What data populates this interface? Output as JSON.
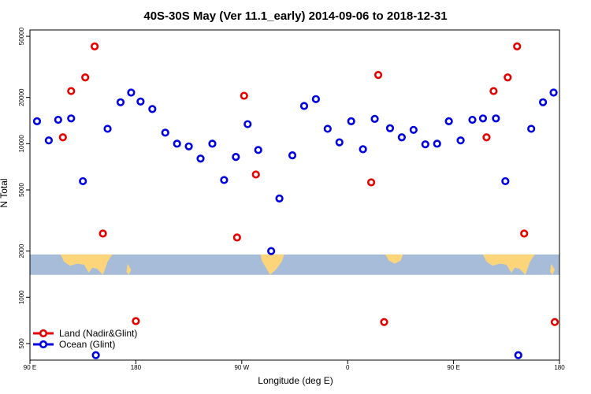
{
  "chart_data": {
    "type": "scatter",
    "title": "40S-30S May (Ver 11.1_early)   2014-09-06 to 2018-12-31",
    "xlabel": "Longitude (deg E)",
    "ylabel": "N Total",
    "y_scale": "log",
    "xlim": [
      90,
      540
    ],
    "ylim": [
      390,
      55000
    ],
    "x_ticks": [
      {
        "value": 90,
        "label": "90 E"
      },
      {
        "value": 180,
        "label": "180"
      },
      {
        "value": 270,
        "label": "90 W"
      },
      {
        "value": 360,
        "label": "0"
      },
      {
        "value": 450,
        "label": "90 E"
      },
      {
        "value": 540,
        "label": "180"
      }
    ],
    "y_ticks": [
      {
        "value": 500,
        "label": "500"
      },
      {
        "value": 1000,
        "label": "1000"
      },
      {
        "value": 2000,
        "label": "2000"
      },
      {
        "value": 5000,
        "label": "5000"
      },
      {
        "value": 10000,
        "label": "10000"
      },
      {
        "value": 20000,
        "label": "20000"
      },
      {
        "value": 50000,
        "label": "50000"
      }
    ],
    "map_strip": {
      "y_top": 1900,
      "y_bottom": 1400,
      "ocean_color": "#a7bcd9",
      "land_color": "#fcd57a"
    },
    "series": [
      {
        "name": "Land (Nadir&Glint)",
        "color": "#e60000",
        "points": [
          [
            118,
            11000
          ],
          [
            125,
            22000
          ],
          [
            137,
            27000
          ],
          [
            145,
            43000
          ],
          [
            152,
            2600
          ],
          [
            180,
            700
          ],
          [
            266,
            2450
          ],
          [
            272,
            20500
          ],
          [
            282,
            6300
          ],
          [
            380,
            5600
          ],
          [
            386,
            28000
          ],
          [
            391,
            690
          ],
          [
            478,
            11000
          ],
          [
            484,
            22000
          ],
          [
            496,
            27000
          ],
          [
            504,
            43000
          ],
          [
            510,
            2600
          ],
          [
            536,
            690
          ]
        ]
      },
      {
        "name": "Ocean (Glint)",
        "color": "#0000e0",
        "points": [
          [
            96,
            14000
          ],
          [
            106,
            10500
          ],
          [
            114,
            14300
          ],
          [
            125,
            14600
          ],
          [
            135,
            5700
          ],
          [
            146,
            420
          ],
          [
            156,
            12500
          ],
          [
            167,
            18600
          ],
          [
            176,
            21500
          ],
          [
            184,
            18800
          ],
          [
            194,
            16800
          ],
          [
            205,
            11800
          ],
          [
            215,
            10000
          ],
          [
            225,
            9600
          ],
          [
            235,
            8000
          ],
          [
            245,
            10000
          ],
          [
            255,
            5800
          ],
          [
            265,
            8200
          ],
          [
            275,
            13400
          ],
          [
            284,
            9100
          ],
          [
            295,
            2000
          ],
          [
            302,
            4400
          ],
          [
            313,
            8400
          ],
          [
            323,
            17600
          ],
          [
            333,
            19500
          ],
          [
            343,
            12500
          ],
          [
            353,
            10200
          ],
          [
            363,
            14000
          ],
          [
            373,
            9200
          ],
          [
            383,
            14500
          ],
          [
            396,
            12600
          ],
          [
            406,
            11000
          ],
          [
            416,
            12300
          ],
          [
            426,
            9900
          ],
          [
            436,
            10000
          ],
          [
            446,
            14000
          ],
          [
            456,
            10500
          ],
          [
            466,
            14300
          ],
          [
            475,
            14600
          ],
          [
            486,
            14600
          ],
          [
            494,
            5700
          ],
          [
            505,
            420
          ],
          [
            516,
            12500
          ],
          [
            526,
            18600
          ],
          [
            535,
            21500
          ]
        ]
      }
    ]
  }
}
